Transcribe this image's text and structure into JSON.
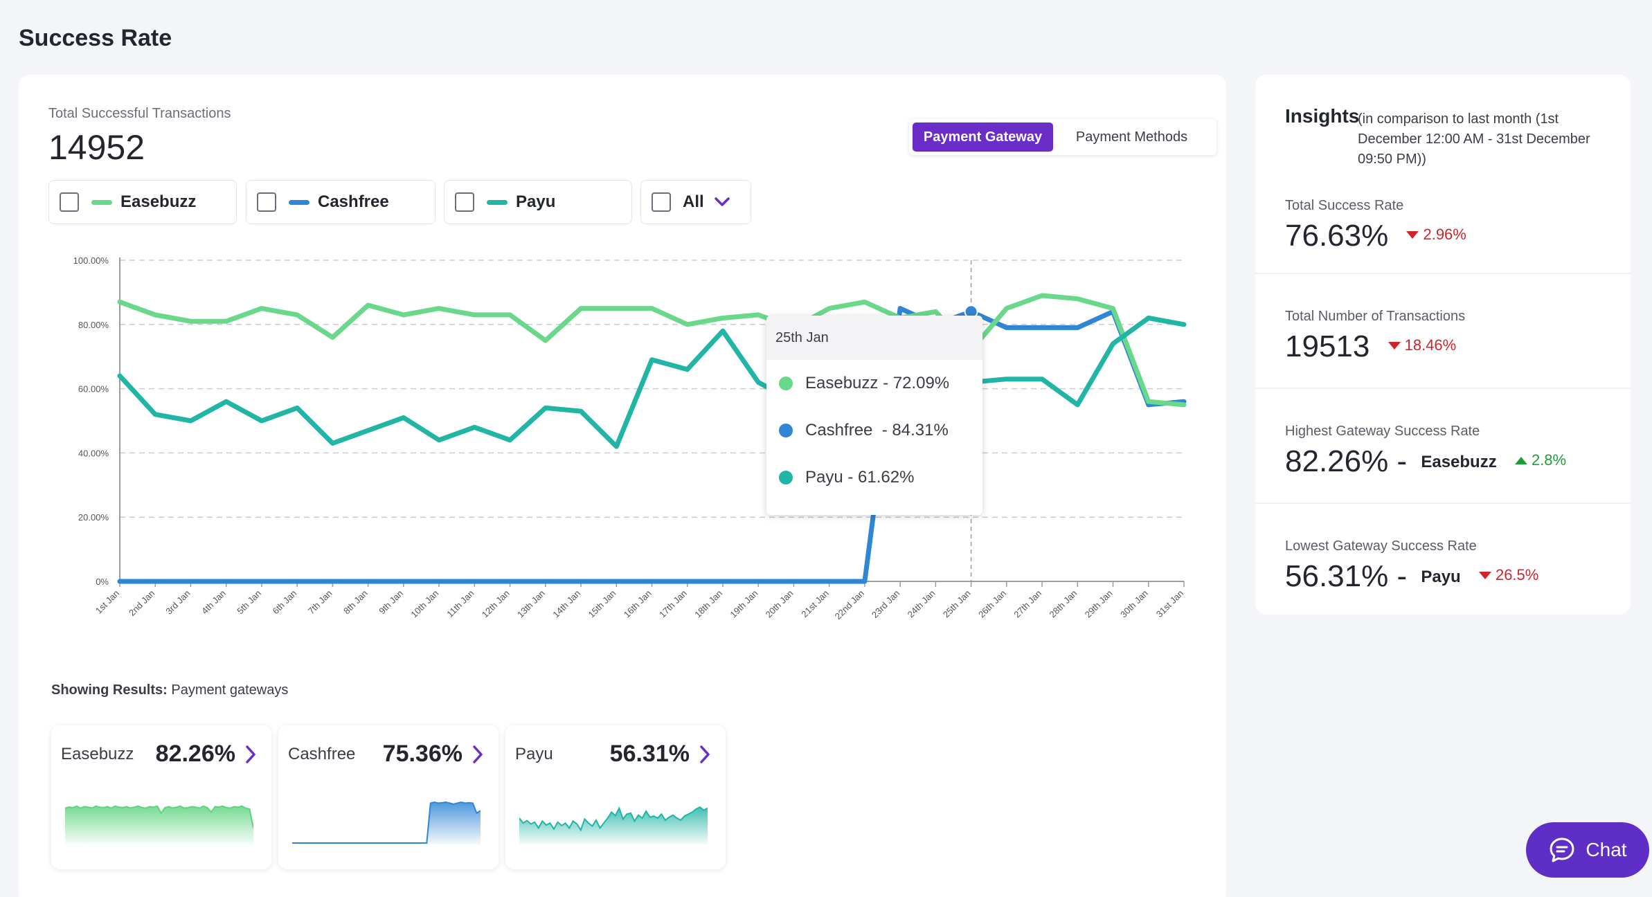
{
  "page": {
    "title": "Success Rate"
  },
  "summary": {
    "label": "Total Successful Transactions",
    "value": "14952"
  },
  "view_toggle": {
    "active": "Payment Gateway",
    "inactive": "Payment Methods"
  },
  "filters": [
    {
      "label": "Easebuzz",
      "color": "#6ad88b"
    },
    {
      "label": "Cashfree",
      "color": "#2f86d4"
    },
    {
      "label": "Payu",
      "color": "#21b5a5"
    },
    {
      "label": "All"
    }
  ],
  "tooltip": {
    "date": "25th Jan",
    "rows": [
      {
        "text": "Easebuzz - 72.09%",
        "color": "#6ad88b"
      },
      {
        "text": "Cashfree  - 84.31%",
        "color": "#2f86d4"
      },
      {
        "text": "Payu - 61.62%",
        "color": "#21b5a5"
      }
    ]
  },
  "chart_data": {
    "type": "line",
    "x": [
      "1st Jan",
      "2nd Jan",
      "3rd Jan",
      "4th Jan",
      "5th Jan",
      "6th Jan",
      "7th Jan",
      "8th Jan",
      "9th Jan",
      "10th Jan",
      "11th Jan",
      "12th Jan",
      "13th Jan",
      "14th Jan",
      "15th Jan",
      "16th Jan",
      "17th Jan",
      "18th Jan",
      "19th Jan",
      "20th Jan",
      "21st Jan",
      "22nd Jan",
      "23rd Jan",
      "24th Jan",
      "25th Jan",
      "26th Jan",
      "27th Jan",
      "28th Jan",
      "29th Jan",
      "30th Jan",
      "31st Jan"
    ],
    "yticks": [
      "0%",
      "20.00%",
      "40.00%",
      "60.00%",
      "80.00%",
      "100.00%"
    ],
    "ylim": [
      0,
      100
    ],
    "grid": true,
    "series": [
      {
        "name": "Easebuzz",
        "color": "#6ad88b",
        "values": [
          87,
          83,
          81,
          81,
          85,
          83,
          76,
          86,
          83,
          85,
          83,
          83,
          75,
          85,
          85,
          85,
          80,
          82,
          83,
          79,
          85,
          87,
          82,
          84,
          72,
          85,
          89,
          88,
          85,
          56,
          55
        ]
      },
      {
        "name": "Cashfree",
        "color": "#2f86d4",
        "values": [
          0,
          0,
          0,
          0,
          0,
          0,
          0,
          0,
          0,
          0,
          0,
          0,
          0,
          0,
          0,
          0,
          0,
          0,
          0,
          0,
          0,
          0,
          85,
          80,
          84,
          79,
          79,
          79,
          84,
          55,
          56
        ]
      },
      {
        "name": "Payu",
        "color": "#21b5a5",
        "values": [
          64,
          52,
          50,
          56,
          50,
          54,
          43,
          47,
          51,
          44,
          48,
          44,
          54,
          53,
          42,
          69,
          66,
          78,
          62,
          56,
          58,
          60,
          62,
          63,
          62,
          63,
          63,
          55,
          74,
          82,
          80
        ]
      }
    ]
  },
  "results": {
    "label": "Showing Results:",
    "value": "Payment gateways",
    "cards": [
      {
        "name": "Easebuzz",
        "value": "82.26%",
        "color": "#5fd47f",
        "spark": [
          70,
          72,
          71,
          74,
          70,
          73,
          72,
          70,
          74,
          72,
          71,
          73,
          70,
          74,
          72,
          71,
          73,
          70,
          72,
          74,
          71,
          70,
          73,
          72,
          74,
          60,
          71,
          73,
          70,
          72,
          74,
          70,
          71,
          73,
          72,
          70,
          74,
          71,
          62,
          73,
          72,
          74,
          71,
          70,
          73,
          72,
          74,
          70,
          68,
          30
        ]
      },
      {
        "name": "Cashfree",
        "value": "75.36%",
        "color": "#2f86d4",
        "spark": [
          0,
          0,
          0,
          0,
          0,
          0,
          0,
          0,
          0,
          0,
          0,
          0,
          0,
          0,
          0,
          0,
          0,
          0,
          0,
          0,
          0,
          0,
          0,
          0,
          0,
          0,
          0,
          0,
          0,
          0,
          0,
          0,
          0,
          0,
          0,
          0,
          80,
          82,
          80,
          81,
          82,
          80,
          78,
          80,
          82,
          80,
          81,
          80,
          60,
          65
        ]
      },
      {
        "name": "Payu",
        "value": "56.31%",
        "color": "#21b5a5",
        "spark": [
          50,
          40,
          45,
          38,
          42,
          30,
          44,
          36,
          40,
          28,
          42,
          35,
          40,
          30,
          44,
          38,
          26,
          48,
          40,
          34,
          46,
          30,
          40,
          50,
          62,
          55,
          70,
          48,
          58,
          60,
          44,
          56,
          50,
          64,
          52,
          54,
          50,
          58,
          46,
          52,
          56,
          50,
          46,
          54,
          58,
          62,
          68,
          72,
          66,
          70
        ]
      }
    ]
  },
  "insights": {
    "title": "Insights",
    "subtitle": "(in comparison to last month (1st December 12:00 AM - 31st December 09:50 PM))",
    "items": [
      {
        "label": "Total Success Rate",
        "value": "76.63%",
        "gateway": "",
        "delta": "2.96%",
        "direction": "down"
      },
      {
        "label": "Total Number of Transactions",
        "value": "19513",
        "gateway": "",
        "delta": "18.46%",
        "direction": "down"
      },
      {
        "label": "Highest Gateway Success Rate",
        "value": "82.26% -",
        "gateway": "Easebuzz",
        "delta": "2.8%",
        "direction": "up"
      },
      {
        "label": "Lowest Gateway Success Rate",
        "value": "56.31% -",
        "gateway": "Payu",
        "delta": "26.5%",
        "direction": "down"
      }
    ]
  },
  "chat": {
    "label": "Chat"
  }
}
